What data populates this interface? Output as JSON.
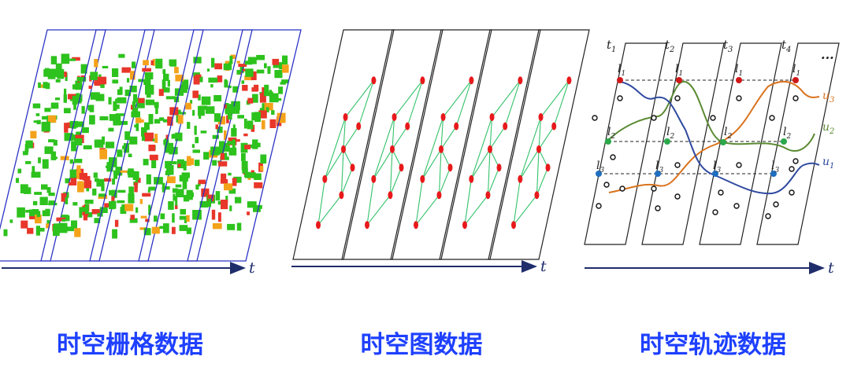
{
  "captions": [
    "时空栅格数据",
    "时空图数据",
    "时空轨迹数据"
  ],
  "axis_label": "t",
  "time_labels": [
    "t1",
    "t2",
    "t3",
    "t4"
  ],
  "ellipsis": "...",
  "location_labels": [
    "l1",
    "l2",
    "l3"
  ],
  "user_labels": [
    "u3",
    "u2",
    "u1"
  ],
  "colors": {
    "caption": "#1e40ff",
    "axis": "#1f2d6b",
    "raster_frame": "#2b33c4",
    "raster_green": "#2dc21d",
    "raster_red": "#e8362a",
    "raster_orange": "#f4a21a",
    "graph_node": "#e8191b",
    "graph_edge": "#33c26a",
    "traj_red": "#d01818",
    "traj_green": "#2aa84a",
    "traj_blue": "#1f6fc0",
    "u3": "#d9731f",
    "u2": "#5a8a32",
    "u1": "#2f4aa0"
  }
}
